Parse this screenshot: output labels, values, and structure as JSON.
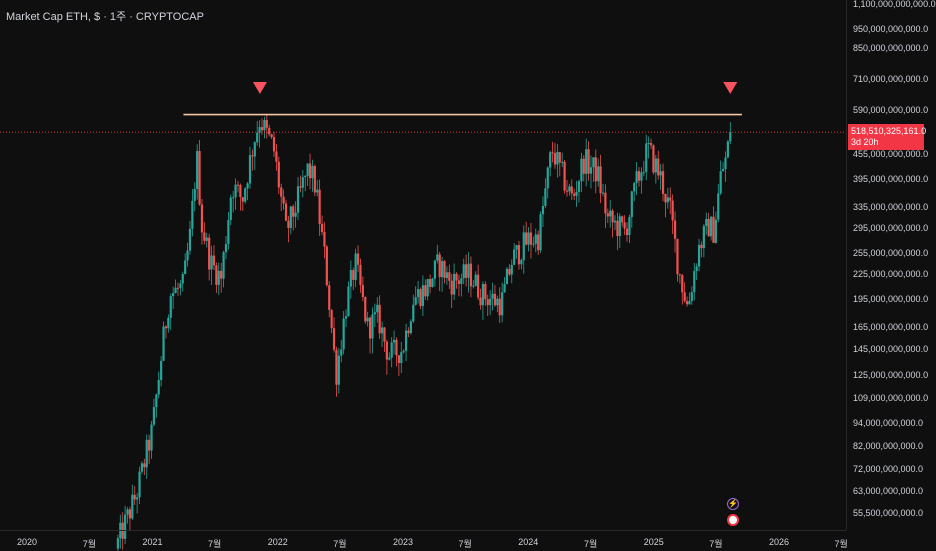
{
  "title": "Market Cap ETH, $ · 1주 · CRYPTOCAP",
  "colors": {
    "background": "#0f0f0f",
    "up": "#26a69a",
    "down": "#ef5350",
    "resistance": "#f5c6a5",
    "marker": "#f7525f",
    "price_line": "#f23645",
    "badge": "#f23645"
  },
  "current_price": {
    "value": "518,510,325,161.0",
    "countdown": "3d 20h"
  },
  "icons": [
    "lightning-icon",
    "flag-icon"
  ],
  "chart_data": {
    "type": "candlestick",
    "y_scale": "log",
    "ylim": [
      50000000000,
      1150000000000
    ],
    "y_ticks": [
      {
        "value": 1100000000000,
        "label": "1,100,000,000,000.0"
      },
      {
        "value": 950000000000,
        "label": "950,000,000,000.0"
      },
      {
        "value": 850000000000,
        "label": "850,000,000,000.0"
      },
      {
        "value": 710000000000,
        "label": "710,000,000,000.0"
      },
      {
        "value": 590000000000,
        "label": "590,000,000,000.0"
      },
      {
        "value": 455000000000,
        "label": "455,000,000,000.0"
      },
      {
        "value": 395000000000,
        "label": "395,000,000,000.0"
      },
      {
        "value": 335000000000,
        "label": "335,000,000,000.0"
      },
      {
        "value": 295000000000,
        "label": "295,000,000,000.0"
      },
      {
        "value": 255000000000,
        "label": "255,000,000,000.0"
      },
      {
        "value": 225000000000,
        "label": "225,000,000,000.0"
      },
      {
        "value": 195000000000,
        "label": "195,000,000,000.0"
      },
      {
        "value": 165000000000,
        "label": "165,000,000,000.0"
      },
      {
        "value": 145000000000,
        "label": "145,000,000,000.0"
      },
      {
        "value": 125000000000,
        "label": "125,000,000,000.0"
      },
      {
        "value": 109000000000,
        "label": "109,000,000,000.0"
      },
      {
        "value": 94000000000,
        "label": "94,000,000,000.0"
      },
      {
        "value": 82000000000,
        "label": "82,000,000,000.0"
      },
      {
        "value": 72000000000,
        "label": "72,000,000,000.0"
      },
      {
        "value": 63000000000,
        "label": "63,000,000,000.0"
      },
      {
        "value": 55500000000,
        "label": "55,500,000,000.0"
      }
    ],
    "x_ticks": [
      {
        "date": "2020-01",
        "label": "2020"
      },
      {
        "date": "2020-07",
        "label": "7월"
      },
      {
        "date": "2021-01",
        "label": "2021"
      },
      {
        "date": "2021-07",
        "label": "7월"
      },
      {
        "date": "2022-01",
        "label": "2022"
      },
      {
        "date": "2022-07",
        "label": "7월"
      },
      {
        "date": "2023-01",
        "label": "2023"
      },
      {
        "date": "2023-07",
        "label": "7월"
      },
      {
        "date": "2024-01",
        "label": "2024"
      },
      {
        "date": "2024-07",
        "label": "7월"
      },
      {
        "date": "2025-01",
        "label": "2025"
      },
      {
        "date": "2025-07",
        "label": "7월"
      },
      {
        "date": "2026-01",
        "label": "2026"
      },
      {
        "date": "2026-07",
        "label": "7월"
      }
    ],
    "x_range": [
      "2019-12-01",
      "2026-08-15"
    ],
    "price_path": [
      [
        "2020-09-15",
        45000000000
      ],
      [
        "2020-11-15",
        62000000000
      ],
      [
        "2020-12-31",
        90000000000
      ],
      [
        "2021-01-31",
        150000000000
      ],
      [
        "2021-02-20",
        200000000000
      ],
      [
        "2021-03-31",
        210000000000
      ],
      [
        "2021-04-20",
        280000000000
      ],
      [
        "2021-05-10",
        450000000000
      ],
      [
        "2021-05-25",
        300000000000
      ],
      [
        "2021-06-20",
        240000000000
      ],
      [
        "2021-07-20",
        220000000000
      ],
      [
        "2021-08-20",
        380000000000
      ],
      [
        "2021-09-20",
        350000000000
      ],
      [
        "2021-10-25",
        500000000000
      ],
      [
        "2021-11-10",
        560000000000
      ],
      [
        "2021-12-20",
        470000000000
      ],
      [
        "2022-01-25",
        290000000000
      ],
      [
        "2022-02-20",
        330000000000
      ],
      [
        "2022-03-31",
        420000000000
      ],
      [
        "2022-04-20",
        380000000000
      ],
      [
        "2022-05-20",
        240000000000
      ],
      [
        "2022-06-20",
        125000000000
      ],
      [
        "2022-07-20",
        190000000000
      ],
      [
        "2022-08-15",
        240000000000
      ],
      [
        "2022-09-20",
        165000000000
      ],
      [
        "2022-10-20",
        175000000000
      ],
      [
        "2022-11-20",
        140000000000
      ],
      [
        "2022-12-31",
        145000000000
      ],
      [
        "2023-01-31",
        195000000000
      ],
      [
        "2023-03-15",
        210000000000
      ],
      [
        "2023-04-15",
        240000000000
      ],
      [
        "2023-05-20",
        215000000000
      ],
      [
        "2023-07-15",
        225000000000
      ],
      [
        "2023-08-20",
        200000000000
      ],
      [
        "2023-10-15",
        190000000000
      ],
      [
        "2023-11-15",
        245000000000
      ],
      [
        "2023-12-31",
        275000000000
      ],
      [
        "2024-01-31",
        280000000000
      ],
      [
        "2024-03-10",
        470000000000
      ],
      [
        "2024-04-20",
        380000000000
      ],
      [
        "2024-05-10",
        350000000000
      ],
      [
        "2024-06-10",
        440000000000
      ],
      [
        "2024-07-20",
        410000000000
      ],
      [
        "2024-08-20",
        310000000000
      ],
      [
        "2024-10-10",
        290000000000
      ],
      [
        "2024-11-10",
        380000000000
      ],
      [
        "2024-12-15",
        470000000000
      ],
      [
        "2025-01-20",
        400000000000
      ],
      [
        "2025-02-20",
        320000000000
      ],
      [
        "2025-03-15",
        230000000000
      ],
      [
        "2025-04-10",
        185000000000
      ],
      [
        "2025-05-10",
        260000000000
      ],
      [
        "2025-06-10",
        300000000000
      ],
      [
        "2025-06-25",
        290000000000
      ],
      [
        "2025-07-15",
        400000000000
      ],
      [
        "2025-08-01",
        450000000000
      ],
      [
        "2025-08-12",
        518510325161
      ]
    ],
    "resistance_line": {
      "value": 575000000000,
      "from": "2021-04-01",
      "to": "2025-09-15"
    },
    "markers": [
      {
        "date": "2021-11-10",
        "shape": "down-triangle"
      },
      {
        "date": "2025-08-12",
        "shape": "down-triangle"
      }
    ],
    "last_price": 518510325161
  }
}
